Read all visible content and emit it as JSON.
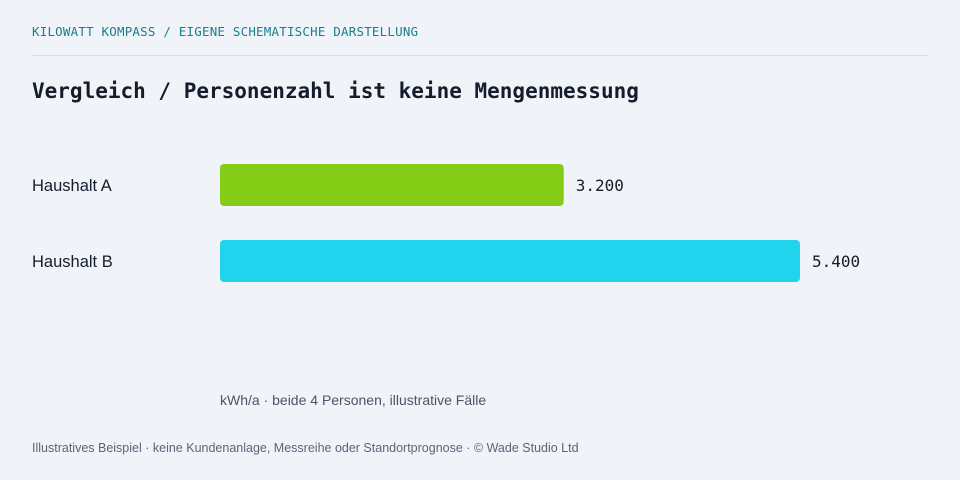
{
  "header": {
    "kicker": "KILOWATT KOMPASS / EIGENE SCHEMATISCHE DARSTELLUNG",
    "title": "Vergleich / Personenzahl ist keine Mengenmessung"
  },
  "chart_data": {
    "type": "bar",
    "orientation": "horizontal",
    "categories": [
      "Haushalt A",
      "Haushalt B"
    ],
    "values": [
      3200,
      5400
    ],
    "value_labels": [
      "3.200",
      "5.400"
    ],
    "colors": [
      "#84cc16",
      "#22d3ee"
    ],
    "unit_note": "kWh/a · beide 4 Personen, illustrative Fälle",
    "grid": false
  },
  "footer": {
    "text": "Illustratives Beispiel · keine Kundenanlage, Messreihe oder Standortprognose · © Wade Studio Ltd"
  }
}
